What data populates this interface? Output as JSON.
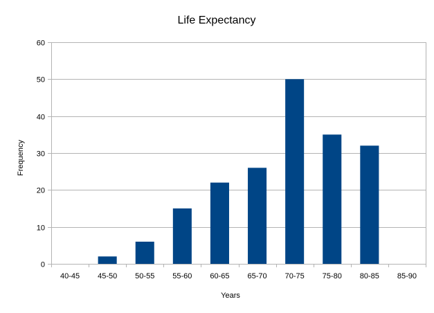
{
  "chart_data": {
    "type": "bar",
    "title": "Life Expectancy",
    "xlabel": "Years",
    "ylabel": "Frequency",
    "categories": [
      "40-45",
      "45-50",
      "50-55",
      "55-60",
      "60-65",
      "65-70",
      "70-75",
      "75-80",
      "80-85",
      "85-90"
    ],
    "values": [
      0,
      2,
      6,
      15,
      22,
      26,
      50,
      35,
      32,
      0
    ],
    "ylim": [
      0,
      60
    ],
    "yticks": [
      0,
      10,
      20,
      30,
      40,
      50,
      60
    ],
    "grid": true,
    "legend": "none",
    "bar_color": "#004586",
    "grid_color": "#b3b3b3"
  }
}
